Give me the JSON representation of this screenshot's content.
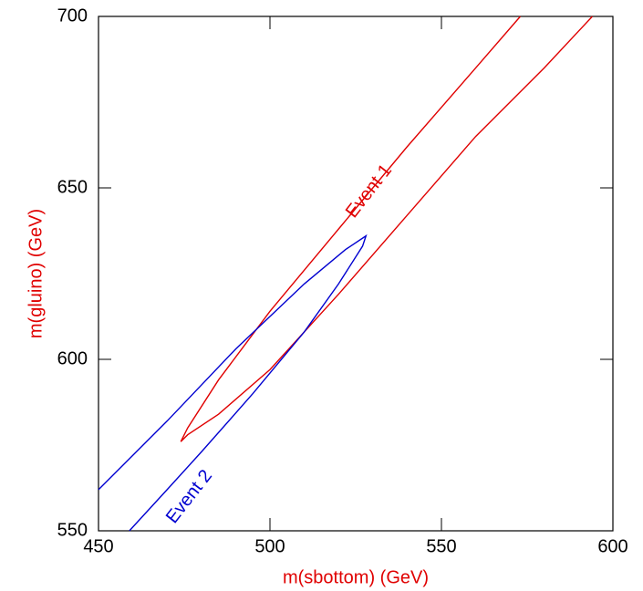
{
  "chart_data": {
    "type": "line",
    "xlabel": "m(sbottom) (GeV)",
    "ylabel": "m(gluino) (GeV)",
    "label_color": "#e00000",
    "xlim": [
      450,
      600
    ],
    "ylim": [
      550,
      700
    ],
    "xticks": [
      450,
      500,
      550,
      600
    ],
    "yticks": [
      550,
      600,
      650,
      700
    ],
    "series": [
      {
        "name": "Event 1",
        "color": "#e00000",
        "x": [
          573,
          560,
          540,
          520,
          500,
          485,
          476,
          474,
          476,
          485,
          500,
          520,
          540,
          560,
          580,
          594
        ],
        "values": [
          700,
          685,
          662,
          638,
          614,
          594,
          580,
          576,
          578,
          584,
          597,
          619,
          642,
          665,
          685,
          700
        ]
      },
      {
        "name": "Event 2",
        "color": "#0000d0",
        "x": [
          450,
          470,
          490,
          510,
          522,
          528,
          527,
          520,
          510,
          495,
          480,
          470,
          459
        ],
        "values": [
          562,
          582,
          603,
          622,
          632,
          636,
          633,
          622,
          608,
          590,
          573,
          562,
          550
        ]
      }
    ]
  }
}
